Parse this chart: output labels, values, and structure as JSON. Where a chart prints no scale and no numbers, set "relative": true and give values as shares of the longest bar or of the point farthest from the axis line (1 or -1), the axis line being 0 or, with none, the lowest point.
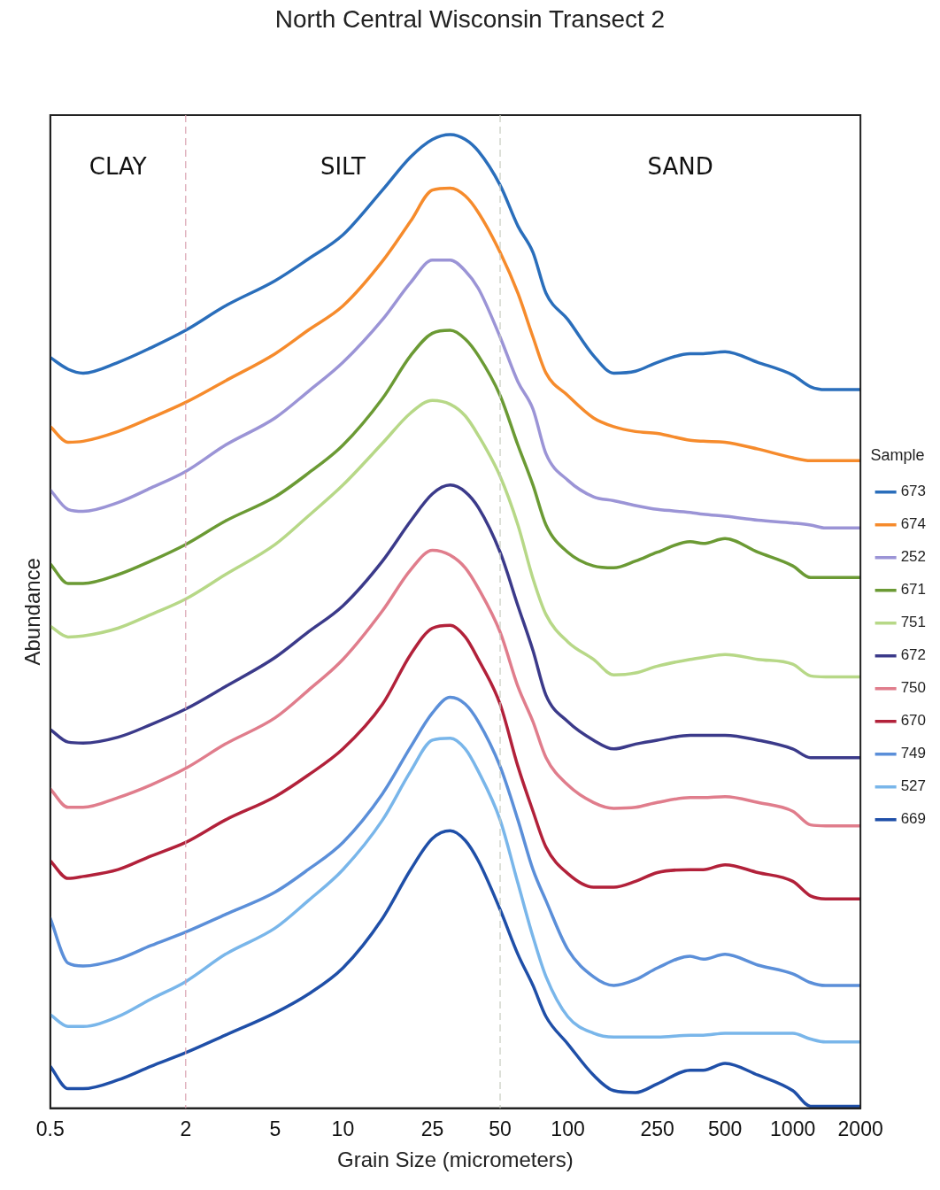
{
  "chart_data": {
    "type": "line",
    "title": "North Central Wisconsin Transect 2",
    "xlabel": "Grain Size (micrometers)",
    "ylabel": "Abundance",
    "legend_title": "Sample",
    "legend": "right",
    "relative": true,
    "log": "x",
    "grid": false,
    "marker": "none",
    "line_style": "solid",
    "tick_labels": "x",
    "xlim": [
      0.5,
      2000
    ],
    "xticks": [
      0.5,
      2,
      5,
      10,
      25,
      50,
      100,
      250,
      500,
      1000,
      2000
    ],
    "x": [
      0.5,
      0.6,
      0.7,
      1,
      1.4,
      2,
      3,
      5,
      7,
      10,
      15,
      20,
      25,
      30,
      35,
      40,
      50,
      60,
      70,
      80,
      100,
      130,
      160,
      200,
      250,
      350,
      400,
      500,
      700,
      1000,
      1200,
      1400,
      2000
    ],
    "ref_lines": [
      {
        "axis": "x",
        "value": 2,
        "color": "#d9a0b0",
        "line_style": "dashed"
      },
      {
        "axis": "x",
        "value": 50,
        "color": "#c8ccc0",
        "line_style": "dashed"
      }
    ],
    "annotations": [
      "CLAY",
      "SILT",
      "SAND"
    ],
    "series": [
      {
        "name": "673",
        "color": "#2a6ebb",
        "values": [
          0.771,
          0.759,
          0.755,
          0.766,
          0.781,
          0.799,
          0.824,
          0.85,
          0.872,
          0.897,
          0.943,
          0.977,
          0.995,
          1,
          0.995,
          0.983,
          0.948,
          0.906,
          0.879,
          0.837,
          0.81,
          0.773,
          0.755,
          0.757,
          0.766,
          0.775,
          0.775,
          0.777,
          0.766,
          0.753,
          0.741,
          0.738,
          0.738
        ]
      },
      {
        "name": "674",
        "color": "#f68b2c",
        "values": [
          0.7,
          0.684,
          0.685,
          0.695,
          0.709,
          0.725,
          0.747,
          0.775,
          0.799,
          0.824,
          0.87,
          0.911,
          0.943,
          0.945,
          0.937,
          0.92,
          0.879,
          0.837,
          0.792,
          0.755,
          0.732,
          0.709,
          0.7,
          0.695,
          0.693,
          0.686,
          0.685,
          0.684,
          0.677,
          0.668,
          0.665,
          0.665,
          0.665
        ]
      },
      {
        "name": "252",
        "color": "#9b94d6",
        "values": [
          0.635,
          0.615,
          0.613,
          0.622,
          0.637,
          0.654,
          0.681,
          0.709,
          0.736,
          0.766,
          0.81,
          0.848,
          0.871,
          0.871,
          0.86,
          0.842,
          0.792,
          0.746,
          0.718,
          0.672,
          0.645,
          0.628,
          0.624,
          0.619,
          0.615,
          0.612,
          0.61,
          0.608,
          0.604,
          0.601,
          0.599,
          0.596,
          0.596
        ]
      },
      {
        "name": "671",
        "color": "#6b9a34",
        "values": [
          0.559,
          0.539,
          0.539,
          0.548,
          0.562,
          0.579,
          0.603,
          0.628,
          0.652,
          0.681,
          0.729,
          0.773,
          0.796,
          0.799,
          0.79,
          0.773,
          0.732,
          0.681,
          0.64,
          0.599,
          0.571,
          0.557,
          0.555,
          0.562,
          0.571,
          0.582,
          0.58,
          0.585,
          0.571,
          0.557,
          0.545,
          0.545,
          0.545
        ]
      },
      {
        "name": "751",
        "color": "#b7d887",
        "values": [
          0.495,
          0.484,
          0.485,
          0.493,
          0.507,
          0.523,
          0.548,
          0.579,
          0.608,
          0.64,
          0.683,
          0.714,
          0.727,
          0.723,
          0.711,
          0.691,
          0.649,
          0.599,
          0.544,
          0.507,
          0.479,
          0.461,
          0.445,
          0.447,
          0.454,
          0.461,
          0.463,
          0.466,
          0.461,
          0.456,
          0.444,
          0.443,
          0.443
        ]
      },
      {
        "name": "672",
        "color": "#3b3a8a",
        "values": [
          0.389,
          0.376,
          0.375,
          0.381,
          0.394,
          0.41,
          0.433,
          0.463,
          0.489,
          0.516,
          0.562,
          0.603,
          0.631,
          0.64,
          0.633,
          0.617,
          0.571,
          0.516,
          0.47,
          0.424,
          0.397,
          0.378,
          0.369,
          0.374,
          0.378,
          0.383,
          0.383,
          0.383,
          0.378,
          0.369,
          0.36,
          0.36,
          0.36
        ]
      },
      {
        "name": "750",
        "color": "#e07d8c",
        "values": [
          0.328,
          0.309,
          0.309,
          0.319,
          0.332,
          0.349,
          0.374,
          0.401,
          0.429,
          0.461,
          0.511,
          0.553,
          0.573,
          0.568,
          0.555,
          0.534,
          0.489,
          0.433,
          0.397,
          0.36,
          0.332,
          0.314,
          0.308,
          0.309,
          0.314,
          0.319,
          0.319,
          0.32,
          0.314,
          0.305,
          0.291,
          0.29,
          0.29
        ]
      },
      {
        "name": "670",
        "color": "#b2213a",
        "values": [
          0.254,
          0.236,
          0.238,
          0.245,
          0.259,
          0.273,
          0.296,
          0.32,
          0.342,
          0.369,
          0.415,
          0.466,
          0.493,
          0.496,
          0.484,
          0.461,
          0.415,
          0.351,
          0.305,
          0.268,
          0.241,
          0.227,
          0.227,
          0.233,
          0.242,
          0.245,
          0.245,
          0.25,
          0.242,
          0.233,
          0.218,
          0.215,
          0.215
        ]
      },
      {
        "name": "749",
        "color": "#5b8fd9",
        "values": [
          0.195,
          0.149,
          0.146,
          0.153,
          0.167,
          0.181,
          0.199,
          0.222,
          0.245,
          0.273,
          0.323,
          0.371,
          0.406,
          0.422,
          0.415,
          0.397,
          0.351,
          0.296,
          0.245,
          0.213,
          0.163,
          0.135,
          0.126,
          0.132,
          0.144,
          0.156,
          0.153,
          0.158,
          0.147,
          0.138,
          0.129,
          0.126,
          0.126
        ]
      },
      {
        "name": "527",
        "color": "#79b6ea",
        "values": [
          0.096,
          0.084,
          0.084,
          0.094,
          0.112,
          0.13,
          0.158,
          0.185,
          0.213,
          0.245,
          0.296,
          0.346,
          0.378,
          0.38,
          0.369,
          0.346,
          0.296,
          0.231,
          0.176,
          0.135,
          0.094,
          0.077,
          0.073,
          0.073,
          0.073,
          0.075,
          0.075,
          0.077,
          0.077,
          0.077,
          0.071,
          0.068,
          0.068
        ]
      },
      {
        "name": "669",
        "color": "#1f4fa8",
        "values": [
          0.043,
          0.02,
          0.02,
          0.029,
          0.043,
          0.057,
          0.075,
          0.098,
          0.117,
          0.144,
          0.195,
          0.245,
          0.277,
          0.285,
          0.275,
          0.254,
          0.204,
          0.158,
          0.126,
          0.094,
          0.066,
          0.034,
          0.018,
          0.016,
          0.025,
          0.039,
          0.039,
          0.046,
          0.034,
          0.018,
          0.002,
          0.002,
          0.002
        ]
      }
    ]
  }
}
